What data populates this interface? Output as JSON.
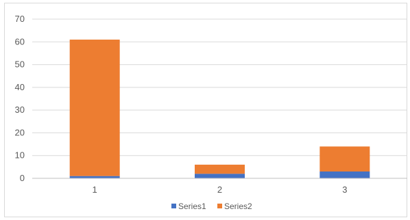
{
  "chart_data": {
    "type": "bar",
    "stacked": true,
    "categories": [
      "1",
      "2",
      "3"
    ],
    "series": [
      {
        "name": "Series1",
        "values": [
          1,
          2,
          3
        ],
        "color": "#4472c4"
      },
      {
        "name": "Series2",
        "values": [
          60,
          4,
          11
        ],
        "color": "#ed7d31"
      }
    ],
    "ylim": [
      0,
      70
    ],
    "yticks": [
      0,
      10,
      20,
      30,
      40,
      50,
      60,
      70
    ],
    "title": "",
    "xlabel": "",
    "ylabel": "",
    "grid": true,
    "legend_position": "bottom",
    "colors": {
      "gridline": "#d9d9d9",
      "axis": "#bfbfbf",
      "text": "#595959"
    }
  }
}
